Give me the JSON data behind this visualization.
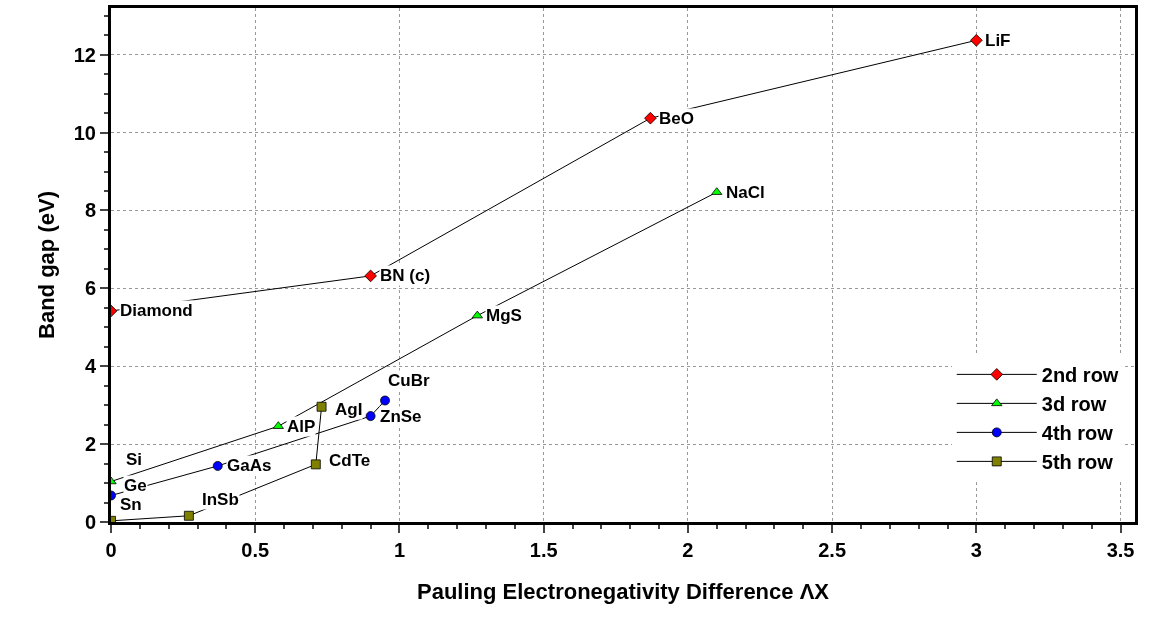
{
  "chart_data": {
    "type": "line",
    "xlabel": "Pauling Electronegativity Difference ΛX",
    "ylabel": "Band gap (eV)",
    "xlim": [
      0,
      3.55
    ],
    "xticks": [
      0,
      0.5,
      1,
      1.5,
      2,
      2.5,
      3,
      3.5
    ],
    "ylim": [
      0,
      13.2
    ],
    "yticks": [
      0,
      2,
      4,
      6,
      8,
      10,
      12
    ],
    "grid": true,
    "legend": "right",
    "line_style": "solid",
    "series": [
      {
        "name": "2nd row",
        "color": "#ff0000",
        "marker": "diamond",
        "x": [
          0,
          0.9,
          1.87,
          3.0
        ],
        "values": [
          5.42,
          6.32,
          10.37,
          12.37
        ]
      },
      {
        "name": "3d row",
        "color": "#00ff00",
        "marker": "triangle",
        "x": [
          0,
          0.58,
          1.27,
          2.1
        ],
        "values": [
          1.04,
          2.46,
          5.3,
          8.47
        ]
      },
      {
        "name": "4th row",
        "color": "#0000ff",
        "marker": "circle",
        "x": [
          0,
          0.37,
          0.9,
          0.95
        ],
        "values": [
          0.68,
          1.44,
          2.72,
          3.12
        ]
      },
      {
        "name": "5th row",
        "color": "#808000",
        "marker": "square",
        "x": [
          0,
          0.27,
          0.71,
          0.73
        ],
        "values": [
          0.03,
          0.16,
          1.48,
          2.96
        ]
      }
    ],
    "annotations": [
      {
        "text": "Diamond",
        "x": 0,
        "y": 5.42
      },
      {
        "text": "BN (c)",
        "x": 0.9,
        "y": 6.32
      },
      {
        "text": "BeO",
        "x": 1.87,
        "y": 10.37
      },
      {
        "text": "LiF",
        "x": 3.0,
        "y": 12.37
      },
      {
        "text": "Si",
        "x": 0,
        "y": 1.04
      },
      {
        "text": "AlP",
        "x": 0.58,
        "y": 2.46
      },
      {
        "text": "MgS",
        "x": 1.27,
        "y": 5.3
      },
      {
        "text": "NaCl",
        "x": 2.1,
        "y": 8.47
      },
      {
        "text": "Ge",
        "x": 0,
        "y": 0.68
      },
      {
        "text": "GaAs",
        "x": 0.37,
        "y": 1.44
      },
      {
        "text": "ZnSe",
        "x": 0.9,
        "y": 2.72
      },
      {
        "text": "CuBr",
        "x": 0.95,
        "y": 3.12
      },
      {
        "text": "Sn",
        "x": 0,
        "y": 0.03
      },
      {
        "text": "InSb",
        "x": 0.27,
        "y": 0.16
      },
      {
        "text": "CdTe",
        "x": 0.71,
        "y": 1.48
      },
      {
        "text": "AgI",
        "x": 0.73,
        "y": 2.96
      }
    ]
  }
}
